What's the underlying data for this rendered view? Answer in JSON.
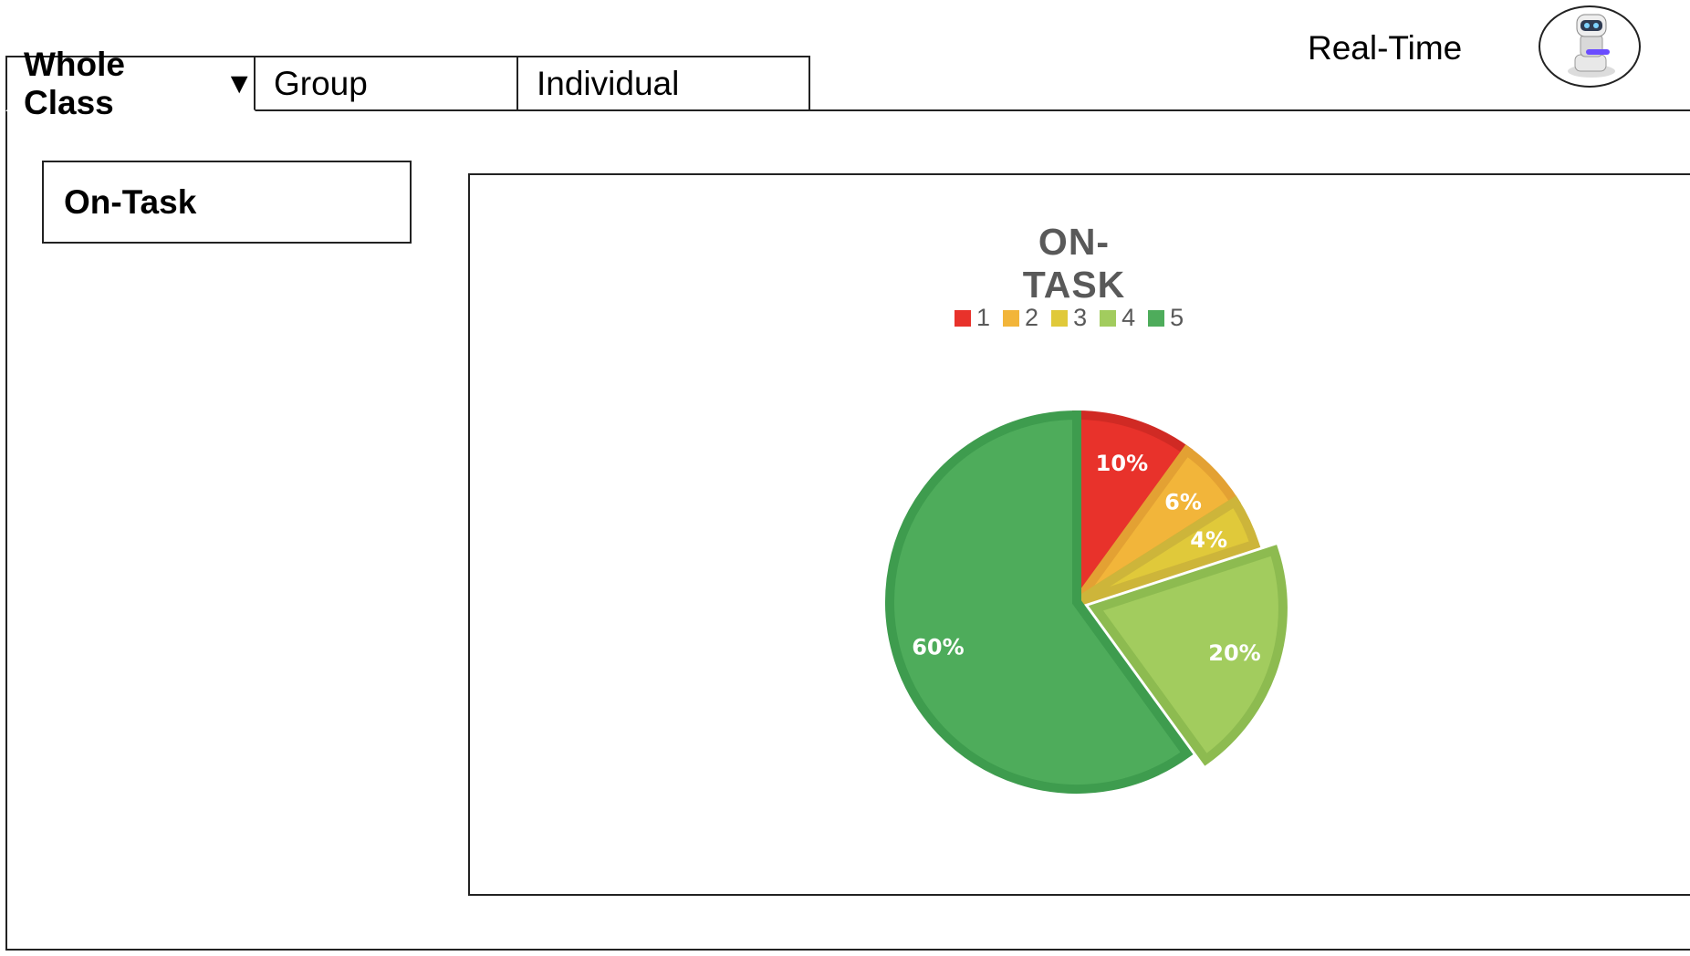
{
  "tabs": [
    {
      "label": "Whole Class",
      "active": true
    },
    {
      "label": "Group",
      "active": false
    },
    {
      "label": "Individual",
      "active": false
    }
  ],
  "caret_icon": "triangle-down-icon",
  "header": {
    "realtime_label": "Real-Time",
    "avatar_icon": "robot-avatar-icon"
  },
  "section_title": "On-Task",
  "chart_data": {
    "type": "pie",
    "title": "ON-TASK",
    "legend_position": "top",
    "categories": [
      "1",
      "2",
      "3",
      "4",
      "5"
    ],
    "values": [
      10,
      6,
      4,
      20,
      60
    ],
    "labels": [
      "10%",
      "6%",
      "4%",
      "20%",
      "60%"
    ],
    "colors": [
      "#E8322B",
      "#F2B53A",
      "#E0C93A",
      "#A2CC5E",
      "#4EAC5B"
    ],
    "border_colors": [
      "#D02A24",
      "#E3A133",
      "#CDB53A",
      "#8DBB50",
      "#3E9C4E"
    ],
    "exploded": [
      "4"
    ]
  }
}
